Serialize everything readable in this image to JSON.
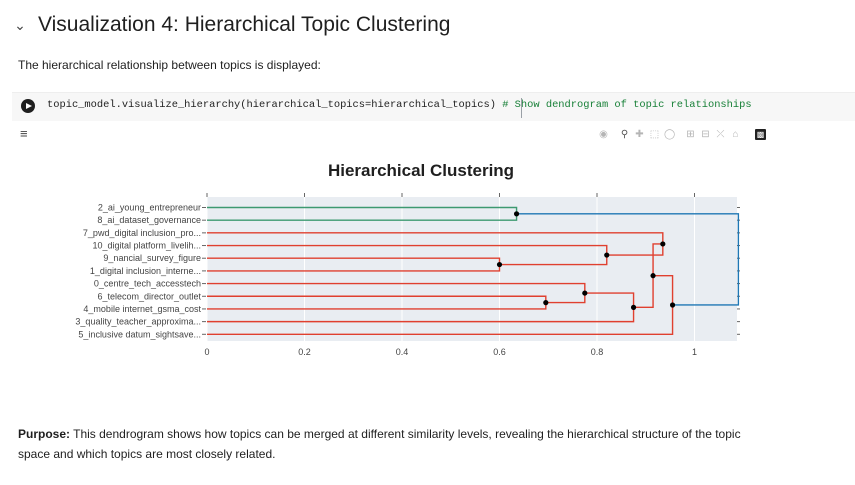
{
  "section": {
    "title": "Visualization 4: Hierarchical Topic Clustering",
    "collapse_icon": "chevron-down-icon"
  },
  "description": "The hierarchical relationship between topics is displayed:",
  "code_cell": {
    "run_icon": "play-icon",
    "code": "topic_model.visualize_hierarchy(hierarchical_topics=hierarchical_topics) ",
    "comment": "# Show dendrogram of topic relationships"
  },
  "output_icon": "output-toggle-icon",
  "modebar": {
    "icons": [
      "camera-icon",
      "zoom-icon",
      "pan-icon",
      "box-select-icon",
      "lasso-select-icon",
      "zoom-in-icon",
      "zoom-out-icon",
      "autoscale-icon",
      "reset-axes-icon",
      "plotly-logo-icon"
    ]
  },
  "chart_data": {
    "type": "dendrogram",
    "title": "Hierarchical Clustering",
    "xlim": [
      0,
      1.09
    ],
    "x_ticks": [
      0,
      0.2,
      0.4,
      0.6,
      0.8,
      1
    ],
    "x_tick_labels": [
      "0",
      "0.2",
      "0.4",
      "0.6",
      "0.8",
      "1"
    ],
    "labels": [
      "2_ai_young_entrepreneur",
      "8_ai_dataset_governance",
      "7_pwd_digital inclusion_pro...",
      "10_digital platform_livelih...",
      "9_nancial_survey_figure",
      "1_digital inclusion_interne...",
      "0_centre_tech_accesstech",
      "6_telecom_director_outlet",
      "4_mobile internet_gsma_cost",
      "3_quality_teacher_approxima...",
      "5_inclusive datum_sightsave..."
    ],
    "colors": {
      "green": "#3d9970",
      "red": "#e0402f",
      "blue": "#1f77b4",
      "plot_bg": "#e9edf2"
    },
    "merges": [
      {
        "left": 0,
        "right": 1,
        "distance": 0.635,
        "color": "green"
      },
      {
        "left": 4,
        "right": 5,
        "distance": 0.6,
        "color": "red"
      },
      {
        "left": 3,
        "right": "m1",
        "distance": 0.82,
        "color": "red"
      },
      {
        "left": 2,
        "right": "m2",
        "distance": 0.935,
        "color": "red"
      },
      {
        "left": 7,
        "right": 8,
        "distance": 0.695,
        "color": "red"
      },
      {
        "left": 6,
        "right": "m4",
        "distance": 0.775,
        "color": "red"
      },
      {
        "left": 9,
        "right": "m5",
        "distance": 0.875,
        "color": "red"
      },
      {
        "left": "m3",
        "right": "m6",
        "distance": 0.915,
        "color": "red"
      },
      {
        "left": "m7",
        "right": 10,
        "distance": 0.955,
        "color": "red"
      },
      {
        "left": "m0",
        "right": "m8",
        "distance": 1.09,
        "color": "blue"
      }
    ]
  },
  "purpose": {
    "label": "Purpose:",
    "text": " This dendrogram shows how topics can be merged at different similarity levels, revealing the hierarchical structure of the topic space and which topics are most closely related."
  }
}
